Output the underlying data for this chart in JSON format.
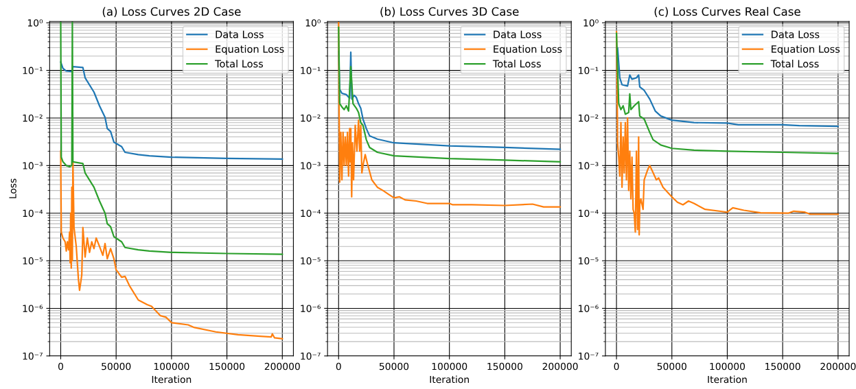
{
  "chart_data": [
    {
      "type": "line",
      "title": "(a) Loss Curves 2D Case",
      "xlabel": "Iteration",
      "ylabel": "Loss",
      "log": "y",
      "grid": true,
      "legend": "top right",
      "xlim": [
        -10000,
        210000
      ],
      "xticks": [
        0,
        50000,
        100000,
        150000,
        200000
      ],
      "ylim": [
        1e-07,
        1.07
      ],
      "yticks": [
        {
          "value": 1e-07,
          "label": "10⁻⁷"
        },
        {
          "value": 1e-06,
          "label": "10⁻⁶"
        },
        {
          "value": 1e-05,
          "label": "10⁻⁵"
        },
        {
          "value": 0.0001,
          "label": "10⁻⁴"
        },
        {
          "value": 0.001,
          "label": "10⁻³"
        },
        {
          "value": 0.01,
          "label": "10⁻²"
        },
        {
          "value": 0.1,
          "label": "10⁻¹"
        },
        {
          "value": 1,
          "label": "10⁰"
        }
      ],
      "series": [
        {
          "name": "Data Loss",
          "color": "#1f77b4",
          "x": [
            0,
            2000,
            5000,
            10000,
            11000,
            20000,
            22000,
            30000,
            35000,
            40000,
            42000,
            45000,
            48000,
            55000,
            58000,
            70000,
            80000,
            100000,
            150000,
            200000
          ],
          "values": [
            0.15,
            0.11,
            0.097,
            0.095,
            0.12,
            0.115,
            0.07,
            0.035,
            0.018,
            0.0103,
            0.006,
            0.0052,
            0.0031,
            0.0025,
            0.0019,
            0.0017,
            0.0016,
            0.0015,
            0.00142,
            0.00137
          ]
        },
        {
          "name": "Equation Loss",
          "color": "#ff7f0e",
          "x": [
            0,
            500,
            2000,
            4000,
            5000,
            6000,
            7000,
            8000,
            8500,
            9000,
            9500,
            10000,
            10500,
            11000,
            12000,
            14000,
            16000,
            17000,
            19000,
            20000,
            22000,
            24000,
            26000,
            28000,
            30000,
            32000,
            35000,
            38000,
            40000,
            42000,
            45000,
            48000,
            50000,
            55000,
            58000,
            62000,
            70000,
            78000,
            82000,
            90000,
            95000,
            100000,
            115000,
            120000,
            140000,
            160000,
            180000,
            190000,
            191000,
            193000,
            200000
          ],
          "values": [
            0.002,
            4e-05,
            3e-05,
            2.5e-05,
            1.6e-05,
            2.5e-05,
            1.7e-05,
            4e-05,
            9e-06,
            0.0001,
            7e-06,
            0.00035,
            1e-05,
            0.0012,
            5e-05,
            2e-05,
            4e-06,
            2.4e-06,
            5e-06,
            5e-05,
            1.2e-05,
            3e-05,
            1.5e-05,
            2.5e-05,
            1.8e-05,
            3e-05,
            2e-05,
            1.3e-05,
            2.3e-05,
            1.1e-05,
            1.8e-05,
            1.1e-05,
            6.5e-06,
            4.5e-06,
            4.7e-06,
            3e-06,
            1.5e-06,
            1.2e-06,
            1.1e-06,
            7e-07,
            6.5e-07,
            5e-07,
            4.5e-07,
            4e-07,
            3.2e-07,
            2.8e-07,
            2.6e-07,
            2.5e-07,
            2.9e-07,
            2.4e-07,
            2.3e-07
          ]
        },
        {
          "name": "Total Loss",
          "color": "#2ca02c",
          "x": [
            0,
            500,
            2000,
            5000,
            8000,
            10000,
            10500,
            11000,
            20000,
            22000,
            30000,
            35000,
            40000,
            42000,
            45000,
            48000,
            55000,
            58000,
            70000,
            80000,
            100000,
            150000,
            200000
          ],
          "values": [
            1.05,
            0.0015,
            0.0012,
            0.001,
            0.00095,
            0.001,
            1.05,
            0.0012,
            0.0011,
            0.0007,
            0.00035,
            0.00018,
            0.0001,
            6e-05,
            5.2e-05,
            3.2e-05,
            2.5e-05,
            1.9e-05,
            1.7e-05,
            1.6e-05,
            1.5e-05,
            1.42e-05,
            1.37e-05
          ]
        }
      ]
    },
    {
      "type": "line",
      "title": "(b) Loss Curves 3D Case",
      "xlabel": "Iteration",
      "log": "y",
      "grid": true,
      "legend": "top right",
      "xlim": [
        -10000,
        210000
      ],
      "xticks": [
        0,
        50000,
        100000,
        150000,
        200000
      ],
      "ylim": [
        1e-07,
        1.07
      ],
      "yticks": [
        {
          "value": 1e-07,
          "label": "10⁻⁷"
        },
        {
          "value": 1e-06,
          "label": "10⁻⁶"
        },
        {
          "value": 1e-05,
          "label": "10⁻⁵"
        },
        {
          "value": 0.0001,
          "label": "10⁻⁴"
        },
        {
          "value": 0.001,
          "label": "10⁻³"
        },
        {
          "value": 0.01,
          "label": "10⁻²"
        },
        {
          "value": 0.1,
          "label": "10⁻¹"
        },
        {
          "value": 1,
          "label": "10⁰"
        }
      ],
      "series": [
        {
          "name": "Data Loss",
          "color": "#1f77b4",
          "x": [
            0,
            1000,
            3000,
            7000,
            10000,
            11000,
            12000,
            14000,
            16000,
            18000,
            20000,
            22000,
            25000,
            28000,
            35000,
            50000,
            75000,
            100000,
            150000,
            200000
          ],
          "values": [
            0.25,
            0.04,
            0.033,
            0.031,
            0.026,
            0.24,
            0.025,
            0.03,
            0.027,
            0.02,
            0.016,
            0.0095,
            0.006,
            0.0042,
            0.0036,
            0.003,
            0.0028,
            0.0026,
            0.0024,
            0.0022
          ]
        },
        {
          "name": "Equation Loss",
          "color": "#ff7f0e",
          "x": [
            0,
            500,
            1000,
            2000,
            3000,
            4000,
            5000,
            6000,
            7000,
            8000,
            9000,
            10000,
            10500,
            11000,
            11800,
            12500,
            13500,
            15000,
            16500,
            18000,
            19000,
            20000,
            21000,
            22000,
            24000,
            26000,
            30000,
            35000,
            40000,
            45000,
            50000,
            55000,
            60000,
            70000,
            80000,
            100000,
            103000,
            120000,
            150000,
            175000,
            185000,
            200000
          ],
          "values": [
            1.0,
            0.01,
            0.00045,
            0.005,
            0.0005,
            0.005,
            0.001,
            0.004,
            0.001,
            0.005,
            0.0006,
            0.006,
            0.0012,
            0.006,
            0.00022,
            0.003,
            0.0005,
            0.007,
            0.002,
            0.009,
            0.002,
            0.007,
            0.0007,
            0.001,
            0.0017,
            0.0011,
            0.0005,
            0.00035,
            0.0003,
            0.00025,
            0.00021,
            0.00022,
            0.00019,
            0.00018,
            0.00016,
            0.00016,
            0.00015,
            0.00015,
            0.000145,
            0.000155,
            0.000135,
            0.000135
          ]
        },
        {
          "name": "Total Loss",
          "color": "#2ca02c",
          "x": [
            0,
            1000,
            3000,
            5000,
            7000,
            9000,
            11000,
            12000,
            13000,
            16000,
            18000,
            20000,
            22000,
            25000,
            28000,
            35000,
            50000,
            75000,
            100000,
            150000,
            200000
          ],
          "values": [
            0.8,
            0.02,
            0.017,
            0.015,
            0.018,
            0.014,
            0.12,
            0.05,
            0.02,
            0.016,
            0.013,
            0.008,
            0.007,
            0.0035,
            0.0024,
            0.0019,
            0.0016,
            0.0015,
            0.0014,
            0.0013,
            0.0012
          ]
        }
      ]
    },
    {
      "type": "line",
      "title": "(c) Loss Curves Real Case",
      "xlabel": "Iteration",
      "log": "y",
      "grid": true,
      "legend": "top right",
      "xlim": [
        -10000,
        210000
      ],
      "xticks": [
        0,
        50000,
        100000,
        150000,
        200000
      ],
      "ylim": [
        1e-07,
        1.07
      ],
      "yticks": [
        {
          "value": 1e-07,
          "label": "10⁻⁷"
        },
        {
          "value": 1e-06,
          "label": "10⁻⁶"
        },
        {
          "value": 1e-05,
          "label": "10⁻⁵"
        },
        {
          "value": 0.0001,
          "label": "10⁻⁴"
        },
        {
          "value": 0.001,
          "label": "10⁻³"
        },
        {
          "value": 0.01,
          "label": "10⁻²"
        },
        {
          "value": 0.1,
          "label": "10⁻¹"
        },
        {
          "value": 1,
          "label": "10⁰"
        }
      ],
      "series": [
        {
          "name": "Data Loss",
          "color": "#1f77b4",
          "x": [
            0,
            1000,
            3000,
            5000,
            10000,
            12000,
            14000,
            18000,
            20000,
            21000,
            25000,
            30000,
            35000,
            40000,
            50000,
            60000,
            70000,
            100000,
            110000,
            150000,
            165000,
            200000
          ],
          "values": [
            0.3,
            0.3,
            0.07,
            0.05,
            0.047,
            0.08,
            0.065,
            0.07,
            0.08,
            0.045,
            0.038,
            0.025,
            0.014,
            0.011,
            0.009,
            0.0085,
            0.008,
            0.0078,
            0.0072,
            0.0072,
            0.0069,
            0.0067
          ]
        },
        {
          "name": "Equation Loss",
          "color": "#ff7f0e",
          "x": [
            0,
            500,
            1000,
            2000,
            3000,
            4000,
            5000,
            6000,
            7000,
            8000,
            9000,
            10000,
            11000,
            12000,
            13000,
            14000,
            15000,
            16000,
            17000,
            18000,
            19000,
            20000,
            20500,
            21000,
            22000,
            24000,
            25000,
            28000,
            30000,
            32000,
            36000,
            38000,
            42000,
            50000,
            55000,
            60000,
            65000,
            70000,
            80000,
            100000,
            105000,
            115000,
            130000,
            155000,
            160000,
            170000,
            175000,
            200000
          ],
          "values": [
            0.65,
            0.1,
            0.003,
            0.0015,
            0.0006,
            0.008,
            0.00035,
            0.004,
            0.0007,
            0.008,
            0.0005,
            0.01,
            0.0003,
            0.002,
            0.0002,
            0.0015,
            0.00012,
            0.0001,
            4e-05,
            0.002,
            4.5e-05,
            0.004,
            3.5e-05,
            0.00015,
            0.0002,
            0.00012,
            0.0005,
            0.0008,
            0.001,
            0.0008,
            0.0005,
            0.00055,
            0.00035,
            0.00022,
            0.00017,
            0.00015,
            0.00018,
            0.00016,
            0.00012,
            0.000105,
            0.00013,
            0.000115,
            0.000102,
            0.0001,
            0.00011,
            0.000105,
            9.5e-05,
            9.5e-05
          ]
        },
        {
          "name": "Total Loss",
          "color": "#2ca02c",
          "x": [
            0,
            2000,
            4000,
            6000,
            8000,
            11000,
            12000,
            13000,
            16000,
            20000,
            21000,
            25000,
            30000,
            33000,
            40000,
            50000,
            70000,
            100000,
            150000,
            200000
          ],
          "values": [
            0.6,
            0.02,
            0.015,
            0.018,
            0.012,
            0.013,
            0.032,
            0.015,
            0.018,
            0.022,
            0.011,
            0.0095,
            0.005,
            0.0035,
            0.0027,
            0.0023,
            0.0021,
            0.002,
            0.0019,
            0.0018
          ]
        }
      ]
    }
  ]
}
